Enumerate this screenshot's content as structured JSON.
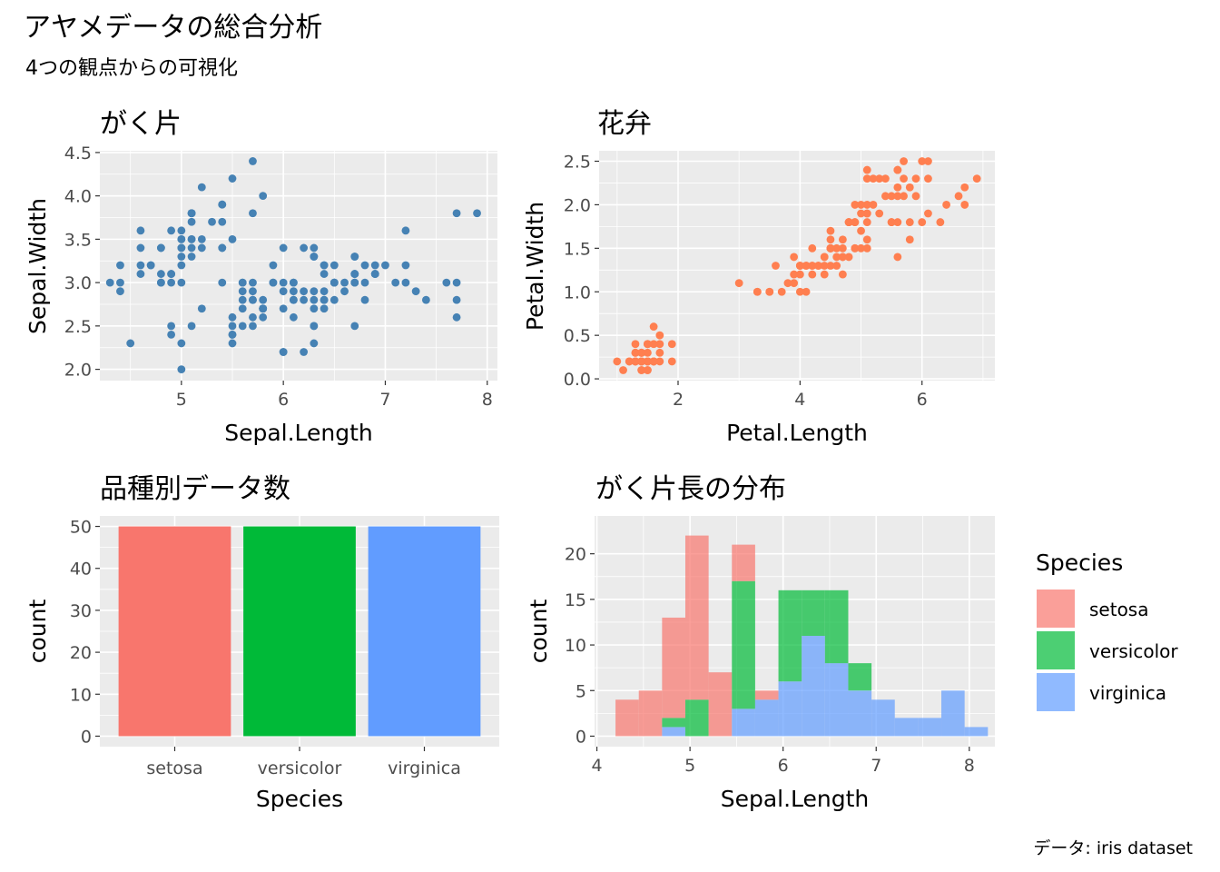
{
  "title": "アヤメデータの総合分析",
  "subtitle": "4つの観点からの可視化",
  "caption": "データ: iris dataset",
  "colors": {
    "panel_bg": "#ebebeb",
    "grid_major": "#ffffff",
    "sepal_points": "#4682b4",
    "petal_points": "#ff7f50",
    "setosa": "#f8766d",
    "versicolor": "#00ba38",
    "virginica": "#619cff"
  },
  "legend": {
    "title": "Species",
    "position": "right",
    "items": [
      {
        "label": "setosa",
        "color": "#f8766d"
      },
      {
        "label": "versicolor",
        "color": "#00ba38"
      },
      {
        "label": "virginica",
        "color": "#619cff"
      }
    ]
  },
  "chart_data": [
    {
      "id": "sepal",
      "type": "scatter",
      "title": "がく片",
      "xlabel": "Sepal.Length",
      "ylabel": "Sepal.Width",
      "xlim": [
        4.2,
        8.1
      ],
      "ylim": [
        1.87,
        4.52
      ],
      "xticks": [
        5,
        6,
        7,
        8
      ],
      "xtick_labels": [
        "5",
        "6",
        "7",
        "8"
      ],
      "yticks": [
        2.0,
        2.5,
        3.0,
        3.5,
        4.0,
        4.5
      ],
      "ytick_labels": [
        "2.0",
        "2.5",
        "3.0",
        "3.5",
        "4.0",
        "4.5"
      ],
      "color": "#4682b4",
      "points": [
        [
          5.1,
          3.5
        ],
        [
          4.9,
          3.0
        ],
        [
          4.7,
          3.2
        ],
        [
          4.6,
          3.1
        ],
        [
          5.0,
          3.6
        ],
        [
          5.4,
          3.9
        ],
        [
          4.6,
          3.4
        ],
        [
          5.0,
          3.4
        ],
        [
          4.4,
          2.9
        ],
        [
          4.9,
          3.1
        ],
        [
          5.4,
          3.7
        ],
        [
          4.8,
          3.4
        ],
        [
          4.8,
          3.0
        ],
        [
          4.3,
          3.0
        ],
        [
          5.8,
          4.0
        ],
        [
          5.7,
          4.4
        ],
        [
          5.4,
          3.9
        ],
        [
          5.1,
          3.5
        ],
        [
          5.7,
          3.8
        ],
        [
          5.1,
          3.8
        ],
        [
          5.4,
          3.4
        ],
        [
          5.1,
          3.7
        ],
        [
          4.6,
          3.6
        ],
        [
          5.1,
          3.3
        ],
        [
          4.8,
          3.4
        ],
        [
          5.0,
          3.0
        ],
        [
          5.0,
          3.4
        ],
        [
          5.2,
          3.5
        ],
        [
          5.2,
          3.4
        ],
        [
          4.7,
          3.2
        ],
        [
          4.8,
          3.1
        ],
        [
          5.4,
          3.4
        ],
        [
          5.2,
          4.1
        ],
        [
          5.5,
          4.2
        ],
        [
          4.9,
          3.1
        ],
        [
          5.0,
          3.2
        ],
        [
          5.5,
          3.5
        ],
        [
          4.9,
          3.6
        ],
        [
          4.4,
          3.0
        ],
        [
          5.1,
          3.4
        ],
        [
          5.0,
          3.5
        ],
        [
          4.5,
          2.3
        ],
        [
          4.4,
          3.2
        ],
        [
          5.0,
          3.5
        ],
        [
          5.1,
          3.8
        ],
        [
          4.8,
          3.0
        ],
        [
          5.1,
          3.8
        ],
        [
          4.6,
          3.2
        ],
        [
          5.3,
          3.7
        ],
        [
          5.0,
          3.3
        ],
        [
          7.0,
          3.2
        ],
        [
          6.4,
          3.2
        ],
        [
          6.9,
          3.1
        ],
        [
          5.5,
          2.3
        ],
        [
          6.5,
          2.8
        ],
        [
          5.7,
          2.8
        ],
        [
          6.3,
          3.3
        ],
        [
          4.9,
          2.4
        ],
        [
          6.6,
          2.9
        ],
        [
          5.2,
          2.7
        ],
        [
          5.0,
          2.0
        ],
        [
          5.9,
          3.0
        ],
        [
          6.0,
          2.2
        ],
        [
          6.1,
          2.9
        ],
        [
          5.6,
          2.9
        ],
        [
          6.7,
          3.1
        ],
        [
          5.6,
          3.0
        ],
        [
          5.8,
          2.7
        ],
        [
          6.2,
          2.2
        ],
        [
          5.6,
          2.5
        ],
        [
          5.9,
          3.2
        ],
        [
          6.1,
          2.8
        ],
        [
          6.3,
          2.5
        ],
        [
          6.1,
          2.8
        ],
        [
          6.4,
          2.9
        ],
        [
          6.6,
          3.0
        ],
        [
          6.8,
          2.8
        ],
        [
          6.7,
          3.0
        ],
        [
          6.0,
          2.9
        ],
        [
          5.7,
          2.6
        ],
        [
          5.5,
          2.4
        ],
        [
          5.5,
          2.4
        ],
        [
          5.8,
          2.7
        ],
        [
          6.0,
          2.7
        ],
        [
          5.4,
          3.0
        ],
        [
          6.0,
          3.4
        ],
        [
          6.7,
          3.1
        ],
        [
          6.3,
          2.3
        ],
        [
          5.6,
          3.0
        ],
        [
          5.5,
          2.5
        ],
        [
          5.5,
          2.6
        ],
        [
          6.1,
          3.0
        ],
        [
          5.8,
          2.6
        ],
        [
          5.0,
          2.3
        ],
        [
          5.6,
          2.7
        ],
        [
          5.7,
          3.0
        ],
        [
          5.7,
          2.9
        ],
        [
          6.2,
          2.9
        ],
        [
          5.1,
          2.5
        ],
        [
          5.7,
          2.8
        ],
        [
          6.3,
          3.3
        ],
        [
          5.8,
          2.7
        ],
        [
          7.1,
          3.0
        ],
        [
          6.3,
          2.9
        ],
        [
          6.5,
          3.0
        ],
        [
          7.6,
          3.0
        ],
        [
          4.9,
          2.5
        ],
        [
          7.3,
          2.9
        ],
        [
          6.7,
          2.5
        ],
        [
          7.2,
          3.6
        ],
        [
          6.5,
          3.2
        ],
        [
          6.4,
          2.7
        ],
        [
          6.8,
          3.0
        ],
        [
          5.7,
          2.5
        ],
        [
          5.8,
          2.8
        ],
        [
          6.4,
          3.2
        ],
        [
          6.5,
          3.0
        ],
        [
          7.7,
          3.8
        ],
        [
          7.7,
          2.6
        ],
        [
          6.0,
          2.2
        ],
        [
          6.9,
          3.2
        ],
        [
          5.6,
          2.8
        ],
        [
          7.7,
          2.8
        ],
        [
          6.3,
          2.7
        ],
        [
          6.7,
          3.3
        ],
        [
          7.2,
          3.2
        ],
        [
          6.2,
          2.8
        ],
        [
          6.1,
          3.0
        ],
        [
          6.4,
          2.8
        ],
        [
          7.2,
          3.0
        ],
        [
          7.4,
          2.8
        ],
        [
          7.9,
          3.8
        ],
        [
          6.4,
          2.8
        ],
        [
          6.3,
          2.8
        ],
        [
          6.1,
          2.6
        ],
        [
          7.7,
          3.0
        ],
        [
          6.3,
          3.4
        ],
        [
          6.4,
          3.1
        ],
        [
          6.0,
          3.0
        ],
        [
          6.9,
          3.1
        ],
        [
          6.7,
          3.1
        ],
        [
          6.9,
          3.1
        ],
        [
          5.8,
          2.7
        ],
        [
          6.8,
          3.2
        ],
        [
          6.7,
          3.3
        ],
        [
          6.7,
          3.0
        ],
        [
          6.3,
          2.5
        ],
        [
          6.5,
          3.0
        ],
        [
          6.2,
          3.4
        ],
        [
          5.9,
          3.0
        ]
      ]
    },
    {
      "id": "petal",
      "type": "scatter",
      "title": "花弁",
      "xlabel": "Petal.Length",
      "ylabel": "Petal.Width",
      "xlim": [
        0.705,
        7.195
      ],
      "ylim": [
        -0.02,
        2.62
      ],
      "xticks": [
        2,
        4,
        6
      ],
      "xtick_labels": [
        "2",
        "4",
        "6"
      ],
      "yticks": [
        0.0,
        0.5,
        1.0,
        1.5,
        2.0,
        2.5
      ],
      "ytick_labels": [
        "0.0",
        "0.5",
        "1.0",
        "1.5",
        "2.0",
        "2.5"
      ],
      "color": "#ff7f50",
      "points": [
        [
          1.4,
          0.2
        ],
        [
          1.4,
          0.2
        ],
        [
          1.3,
          0.2
        ],
        [
          1.5,
          0.2
        ],
        [
          1.4,
          0.2
        ],
        [
          1.7,
          0.4
        ],
        [
          1.4,
          0.3
        ],
        [
          1.5,
          0.2
        ],
        [
          1.4,
          0.2
        ],
        [
          1.5,
          0.1
        ],
        [
          1.5,
          0.2
        ],
        [
          1.6,
          0.2
        ],
        [
          1.4,
          0.1
        ],
        [
          1.1,
          0.1
        ],
        [
          1.2,
          0.2
        ],
        [
          1.5,
          0.4
        ],
        [
          1.3,
          0.4
        ],
        [
          1.4,
          0.3
        ],
        [
          1.7,
          0.3
        ],
        [
          1.5,
          0.3
        ],
        [
          1.7,
          0.2
        ],
        [
          1.5,
          0.4
        ],
        [
          1.0,
          0.2
        ],
        [
          1.7,
          0.5
        ],
        [
          1.9,
          0.2
        ],
        [
          1.6,
          0.2
        ],
        [
          1.6,
          0.4
        ],
        [
          1.5,
          0.2
        ],
        [
          1.4,
          0.2
        ],
        [
          1.6,
          0.2
        ],
        [
          1.6,
          0.2
        ],
        [
          1.5,
          0.4
        ],
        [
          1.5,
          0.1
        ],
        [
          1.4,
          0.2
        ],
        [
          1.5,
          0.2
        ],
        [
          1.2,
          0.2
        ],
        [
          1.3,
          0.2
        ],
        [
          1.4,
          0.1
        ],
        [
          1.3,
          0.2
        ],
        [
          1.5,
          0.2
        ],
        [
          1.3,
          0.3
        ],
        [
          1.3,
          0.3
        ],
        [
          1.3,
          0.2
        ],
        [
          1.6,
          0.6
        ],
        [
          1.9,
          0.4
        ],
        [
          1.4,
          0.3
        ],
        [
          1.6,
          0.2
        ],
        [
          1.4,
          0.2
        ],
        [
          1.5,
          0.2
        ],
        [
          1.4,
          0.2
        ],
        [
          4.7,
          1.4
        ],
        [
          4.5,
          1.5
        ],
        [
          4.9,
          1.5
        ],
        [
          4.0,
          1.3
        ],
        [
          4.6,
          1.5
        ],
        [
          4.5,
          1.3
        ],
        [
          4.7,
          1.6
        ],
        [
          3.3,
          1.0
        ],
        [
          4.6,
          1.3
        ],
        [
          3.9,
          1.4
        ],
        [
          3.5,
          1.0
        ],
        [
          4.2,
          1.5
        ],
        [
          4.0,
          1.0
        ],
        [
          4.7,
          1.4
        ],
        [
          3.6,
          1.3
        ],
        [
          4.4,
          1.4
        ],
        [
          4.5,
          1.5
        ],
        [
          4.1,
          1.0
        ],
        [
          4.5,
          1.5
        ],
        [
          3.9,
          1.1
        ],
        [
          4.8,
          1.8
        ],
        [
          4.0,
          1.3
        ],
        [
          4.9,
          1.5
        ],
        [
          4.7,
          1.2
        ],
        [
          4.3,
          1.3
        ],
        [
          4.4,
          1.4
        ],
        [
          4.8,
          1.4
        ],
        [
          5.0,
          1.7
        ],
        [
          4.5,
          1.5
        ],
        [
          3.5,
          1.0
        ],
        [
          3.8,
          1.1
        ],
        [
          3.7,
          1.0
        ],
        [
          3.9,
          1.2
        ],
        [
          5.1,
          1.6
        ],
        [
          4.5,
          1.5
        ],
        [
          4.5,
          1.6
        ],
        [
          4.7,
          1.5
        ],
        [
          4.4,
          1.3
        ],
        [
          4.1,
          1.3
        ],
        [
          4.0,
          1.3
        ],
        [
          4.4,
          1.2
        ],
        [
          4.6,
          1.4
        ],
        [
          4.0,
          1.2
        ],
        [
          3.3,
          1.0
        ],
        [
          4.2,
          1.3
        ],
        [
          4.2,
          1.2
        ],
        [
          4.2,
          1.3
        ],
        [
          4.3,
          1.3
        ],
        [
          3.0,
          1.1
        ],
        [
          4.1,
          1.3
        ],
        [
          6.0,
          2.5
        ],
        [
          5.1,
          1.9
        ],
        [
          5.9,
          2.1
        ],
        [
          5.6,
          1.8
        ],
        [
          5.8,
          2.2
        ],
        [
          6.6,
          2.1
        ],
        [
          4.5,
          1.7
        ],
        [
          6.3,
          1.8
        ],
        [
          5.8,
          1.8
        ],
        [
          6.1,
          2.5
        ],
        [
          5.1,
          2.0
        ],
        [
          5.3,
          1.9
        ],
        [
          5.5,
          2.1
        ],
        [
          5.0,
          2.0
        ],
        [
          5.1,
          2.4
        ],
        [
          5.3,
          2.3
        ],
        [
          5.5,
          1.8
        ],
        [
          6.7,
          2.2
        ],
        [
          6.9,
          2.3
        ],
        [
          5.0,
          1.5
        ],
        [
          5.7,
          2.3
        ],
        [
          4.9,
          2.0
        ],
        [
          6.7,
          2.0
        ],
        [
          4.9,
          1.8
        ],
        [
          5.7,
          2.1
        ],
        [
          6.0,
          1.8
        ],
        [
          4.8,
          1.8
        ],
        [
          4.9,
          1.8
        ],
        [
          5.6,
          2.1
        ],
        [
          5.8,
          1.6
        ],
        [
          6.1,
          1.9
        ],
        [
          6.4,
          2.0
        ],
        [
          5.6,
          2.2
        ],
        [
          5.1,
          1.5
        ],
        [
          5.6,
          1.4
        ],
        [
          6.1,
          2.3
        ],
        [
          5.6,
          2.4
        ],
        [
          5.5,
          1.8
        ],
        [
          4.8,
          1.8
        ],
        [
          5.4,
          2.1
        ],
        [
          5.6,
          2.4
        ],
        [
          5.1,
          2.3
        ],
        [
          5.1,
          1.9
        ],
        [
          5.9,
          2.3
        ],
        [
          5.7,
          2.5
        ],
        [
          5.2,
          2.3
        ],
        [
          5.0,
          1.9
        ],
        [
          5.2,
          2.0
        ],
        [
          5.4,
          2.3
        ],
        [
          5.1,
          1.8
        ]
      ]
    },
    {
      "id": "count",
      "type": "bar",
      "title": "品種別データ数",
      "xlabel": "Species",
      "ylabel": "count",
      "categories": [
        "setosa",
        "versicolor",
        "virginica"
      ],
      "values": [
        50,
        50,
        50
      ],
      "colors": [
        "#f8766d",
        "#00ba38",
        "#619cff"
      ],
      "ylim": [
        -2.5,
        52.5
      ],
      "yticks": [
        0,
        10,
        20,
        30,
        40,
        50
      ],
      "ytick_labels": [
        "0",
        "10",
        "20",
        "30",
        "40",
        "50"
      ]
    },
    {
      "id": "hist",
      "type": "bar",
      "title": "がく片長の分布",
      "xlabel": "Sepal.Length",
      "ylabel": "count",
      "stacked": true,
      "bin_width": 0.25,
      "bin_start": 4.2,
      "xlim": [
        3.975,
        8.275
      ],
      "ylim": [
        -1.15,
        24.15
      ],
      "xticks": [
        4,
        5,
        6,
        7,
        8
      ],
      "xtick_labels": [
        "4",
        "5",
        "6",
        "7",
        "8"
      ],
      "yticks": [
        0,
        5,
        10,
        15,
        20
      ],
      "ytick_labels": [
        "0",
        "5",
        "10",
        "15",
        "20"
      ],
      "opacity": 0.7,
      "series": [
        {
          "name": "virginica",
          "color": "#619cff",
          "values": [
            0,
            0,
            1,
            0,
            0,
            3,
            4,
            6,
            11,
            8,
            5,
            4,
            2,
            2,
            5,
            1
          ]
        },
        {
          "name": "versicolor",
          "color": "#00ba38",
          "values": [
            0,
            0,
            1,
            4,
            0,
            14,
            0,
            10,
            5,
            8,
            3,
            0,
            0,
            0,
            0,
            0
          ]
        },
        {
          "name": "setosa",
          "color": "#f8766d",
          "values": [
            4,
            5,
            11,
            18,
            7,
            4,
            1,
            0,
            0,
            0,
            0,
            0,
            0,
            0,
            0,
            0
          ]
        }
      ]
    }
  ]
}
